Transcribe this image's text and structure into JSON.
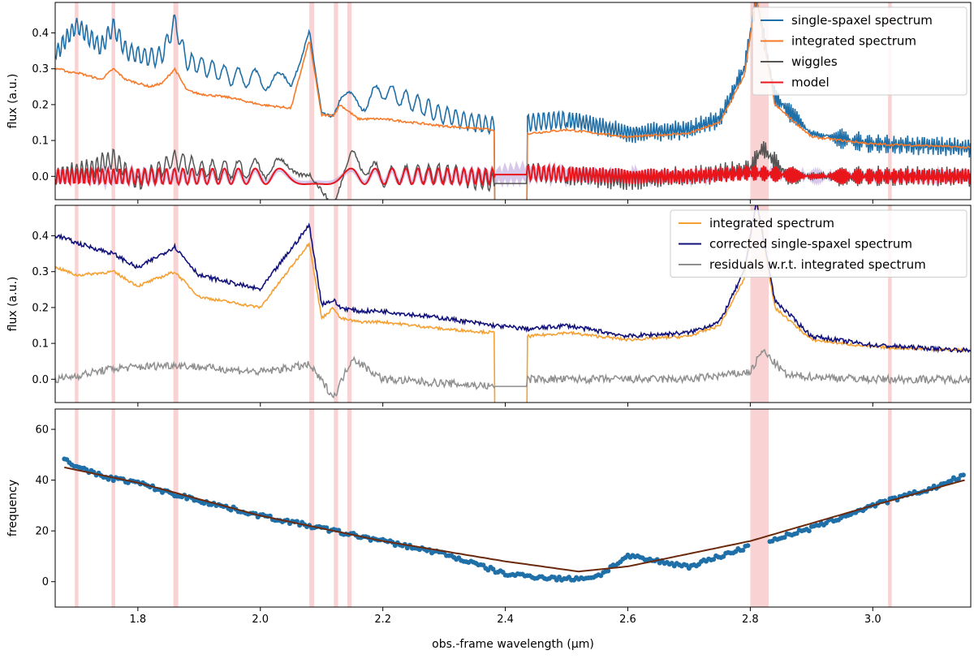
{
  "colors": {
    "single": "#1f6fa8",
    "integrated_top": "#f77a2a",
    "wiggles": "#555555",
    "model": "#e8151b",
    "model_band": "#b89ad8",
    "integrated_mid": "#f5a033",
    "corrected": "#12127a",
    "residuals": "#8f8f8f",
    "freq_points": "#1f6fa8",
    "freq_fit": "#6b2a0d",
    "shade": "#f7c0c0"
  },
  "chart_data": [
    {
      "type": "line",
      "panel": "top",
      "ylabel": "flux (a.u.)",
      "xlim": [
        1.665,
        3.16
      ],
      "ylim": [
        -0.065,
        0.485
      ],
      "yticks": [
        "0.0",
        "0.1",
        "0.2",
        "0.3",
        "0.4"
      ],
      "shaded_regions": [
        [
          1.697,
          1.703
        ],
        [
          1.757,
          1.763
        ],
        [
          1.858,
          1.866
        ],
        [
          2.08,
          2.088
        ],
        [
          2.12,
          2.127
        ],
        [
          2.142,
          2.149
        ],
        [
          2.8,
          2.83
        ],
        [
          3.025,
          3.031
        ]
      ],
      "legend_position": "upper right",
      "series": [
        {
          "name": "single-spaxel spectrum",
          "x": [
            1.67,
            1.69,
            1.7,
            1.72,
            1.74,
            1.76,
            1.78,
            1.8,
            1.82,
            1.84,
            1.86,
            1.88,
            1.9,
            1.95,
            2.0,
            2.05,
            2.08,
            2.1,
            2.12,
            2.13,
            2.16,
            2.2,
            2.3,
            2.38,
            2.44,
            2.5,
            2.6,
            2.7,
            2.75,
            2.79,
            2.81,
            2.84,
            2.9,
            3.0,
            3.1,
            3.16
          ],
          "y": [
            0.35,
            0.4,
            0.42,
            0.39,
            0.36,
            0.42,
            0.35,
            0.34,
            0.33,
            0.34,
            0.43,
            0.32,
            0.31,
            0.28,
            0.27,
            0.26,
            0.43,
            0.2,
            0.19,
            0.22,
            0.2,
            0.24,
            0.17,
            0.14,
            0.15,
            0.16,
            0.12,
            0.13,
            0.16,
            0.3,
            0.5,
            0.22,
            0.12,
            0.09,
            0.085,
            0.08
          ]
        },
        {
          "name": "integrated spectrum",
          "x": [
            1.67,
            1.69,
            1.7,
            1.72,
            1.74,
            1.76,
            1.78,
            1.8,
            1.82,
            1.84,
            1.86,
            1.88,
            1.9,
            1.95,
            2.0,
            2.05,
            2.08,
            2.1,
            2.12,
            2.13,
            2.16,
            2.2,
            2.3,
            2.38,
            2.44,
            2.5,
            2.6,
            2.7,
            2.75,
            2.79,
            2.81,
            2.84,
            2.9,
            3.0,
            3.1,
            3.16
          ],
          "y": [
            0.3,
            0.29,
            0.29,
            0.28,
            0.27,
            0.3,
            0.27,
            0.26,
            0.25,
            0.26,
            0.3,
            0.24,
            0.23,
            0.22,
            0.2,
            0.19,
            0.38,
            0.17,
            0.17,
            0.2,
            0.16,
            0.16,
            0.14,
            0.13,
            0.12,
            0.13,
            0.11,
            0.12,
            0.15,
            0.28,
            0.5,
            0.2,
            0.11,
            0.09,
            0.085,
            0.08
          ]
        },
        {
          "name": "wiggles",
          "x": [
            1.67,
            1.72,
            1.76,
            1.8,
            1.86,
            1.9,
            2.0,
            2.08,
            2.12,
            2.15,
            2.2,
            2.3,
            2.38,
            2.44,
            2.6,
            2.7,
            2.8,
            2.82,
            2.86,
            3.0,
            3.16
          ],
          "y": [
            0.0,
            0.02,
            0.05,
            -0.02,
            0.05,
            0.02,
            0.02,
            0.03,
            -0.06,
            0.05,
            0.0,
            0.01,
            -0.02,
            0.01,
            -0.01,
            0.0,
            0.02,
            0.08,
            0.0,
            0.0,
            0.0
          ]
        },
        {
          "name": "model",
          "x": [
            1.67,
            1.75,
            1.85,
            2.0,
            2.1,
            2.2,
            2.3,
            2.38,
            2.44,
            2.6,
            2.7,
            2.8,
            2.9,
            3.0,
            3.16
          ],
          "y": [
            0.0,
            0.0,
            0.0,
            0.0,
            0.0,
            0.0,
            0.0,
            0.0,
            0.01,
            0.0,
            0.0,
            0.01,
            0.0,
            0.0,
            0.0
          ]
        }
      ]
    },
    {
      "type": "line",
      "panel": "middle",
      "ylabel": "flux (a.u.)",
      "xlim": [
        1.665,
        3.16
      ],
      "ylim": [
        -0.065,
        0.485
      ],
      "yticks": [
        "0.0",
        "0.1",
        "0.2",
        "0.3",
        "0.4"
      ],
      "legend_position": "upper right",
      "series": [
        {
          "name": "integrated spectrum",
          "x": [
            1.67,
            1.7,
            1.76,
            1.8,
            1.86,
            1.9,
            2.0,
            2.08,
            2.1,
            2.12,
            2.13,
            2.16,
            2.2,
            2.3,
            2.38,
            2.44,
            2.5,
            2.6,
            2.7,
            2.75,
            2.79,
            2.81,
            2.84,
            2.9,
            3.0,
            3.16
          ],
          "y": [
            0.31,
            0.29,
            0.3,
            0.26,
            0.3,
            0.23,
            0.2,
            0.38,
            0.17,
            0.2,
            0.17,
            0.16,
            0.16,
            0.14,
            0.13,
            0.12,
            0.13,
            0.11,
            0.12,
            0.15,
            0.28,
            0.5,
            0.2,
            0.11,
            0.09,
            0.08
          ]
        },
        {
          "name": "corrected single-spaxel spectrum",
          "x": [
            1.67,
            1.7,
            1.76,
            1.8,
            1.86,
            1.9,
            2.0,
            2.08,
            2.1,
            2.12,
            2.13,
            2.16,
            2.2,
            2.3,
            2.38,
            2.44,
            2.5,
            2.6,
            2.7,
            2.75,
            2.79,
            2.81,
            2.84,
            2.9,
            3.0,
            3.16
          ],
          "y": [
            0.4,
            0.38,
            0.35,
            0.31,
            0.37,
            0.29,
            0.25,
            0.43,
            0.21,
            0.22,
            0.2,
            0.19,
            0.19,
            0.17,
            0.15,
            0.14,
            0.15,
            0.12,
            0.13,
            0.16,
            0.3,
            0.5,
            0.22,
            0.12,
            0.095,
            0.08
          ]
        },
        {
          "name": "residuals w.r.t. integrated spectrum",
          "x": [
            1.67,
            1.76,
            1.86,
            2.0,
            2.08,
            2.12,
            2.15,
            2.2,
            2.38,
            2.44,
            2.7,
            2.8,
            2.82,
            2.86,
            3.0,
            3.16
          ],
          "y": [
            0.0,
            0.03,
            0.04,
            0.02,
            0.04,
            -0.05,
            0.06,
            0.0,
            -0.02,
            0.0,
            0.0,
            0.02,
            0.08,
            0.01,
            0.0,
            0.0
          ]
        }
      ]
    },
    {
      "type": "scatter",
      "panel": "bottom",
      "xlabel": "obs.-frame wavelength (μm)",
      "ylabel": "frequency",
      "xlim": [
        1.665,
        3.16
      ],
      "ylim": [
        -10,
        68
      ],
      "yticks": [
        "0",
        "20",
        "40",
        "60"
      ],
      "xticks": [
        "1.8",
        "2.0",
        "2.2",
        "2.4",
        "2.6",
        "2.8",
        "3.0"
      ],
      "series": [
        {
          "name": "",
          "type": "scatter",
          "x": [
            1.68,
            1.7,
            1.75,
            1.8,
            1.85,
            1.9,
            2.0,
            2.1,
            2.2,
            2.3,
            2.4,
            2.5,
            2.55,
            2.6,
            2.7,
            2.8,
            2.9,
            3.0,
            3.1,
            3.15
          ],
          "y": [
            49,
            45,
            41,
            39,
            35,
            32,
            26,
            21,
            16,
            11,
            3,
            1,
            2,
            10,
            6,
            14,
            21,
            30,
            37,
            42
          ]
        },
        {
          "name": "",
          "type": "line",
          "x": [
            1.68,
            1.8,
            2.0,
            2.2,
            2.4,
            2.52,
            2.6,
            2.8,
            3.0,
            3.15
          ],
          "y": [
            45,
            39,
            26,
            16,
            8,
            4,
            6,
            16,
            30,
            40
          ]
        }
      ]
    }
  ]
}
